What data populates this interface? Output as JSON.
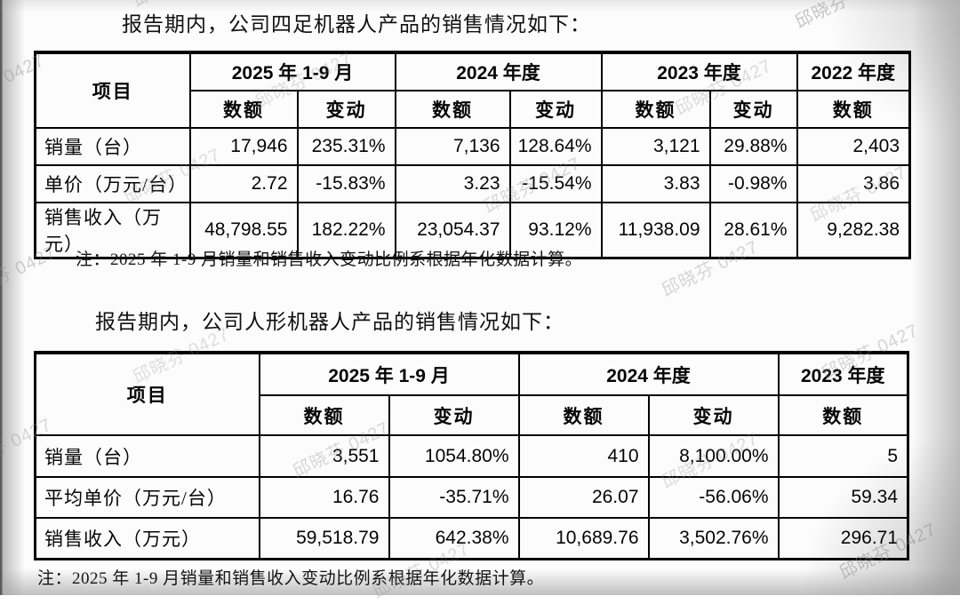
{
  "page": {
    "watermark_text": "邱晓芬 0427"
  },
  "section1": {
    "title": "报告期内，公司四足机器人产品的销售情况如下：",
    "note": "注：2025 年 1-9 月销量和销售收入变动比例系根据年化数据计算。",
    "table": {
      "item_header": "项目",
      "subheaders": {
        "amount": "数额",
        "change": "变动"
      },
      "col_groups": [
        {
          "label": "2025 年 1-9 月",
          "cols": [
            "数额",
            "变动"
          ]
        },
        {
          "label": "2024 年度",
          "cols": [
            "数额",
            "变动"
          ]
        },
        {
          "label": "2023 年度",
          "cols": [
            "数额",
            "变动"
          ]
        },
        {
          "label": "2022 年度",
          "cols": [
            "数额"
          ]
        }
      ],
      "rows": [
        {
          "label": "销量（台）",
          "values": [
            "17,946",
            "235.31%",
            "7,136",
            "128.64%",
            "3,121",
            "29.88%",
            "2,403"
          ]
        },
        {
          "label": "单价（万元/台）",
          "values": [
            "2.72",
            "-15.83%",
            "3.23",
            "-15.54%",
            "3.83",
            "-0.98%",
            "3.86"
          ]
        },
        {
          "label": "销售收入（万元）",
          "values": [
            "48,798.55",
            "182.22%",
            "23,054.37",
            "93.12%",
            "11,938.09",
            "28.61%",
            "9,282.38"
          ]
        }
      ]
    }
  },
  "section2": {
    "title": "报告期内，公司人形机器人产品的销售情况如下：",
    "note": "注：2025 年 1-9 月销量和销售收入变动比例系根据年化数据计算。",
    "table": {
      "item_header": "项目",
      "col_groups": [
        {
          "label": "2025 年 1-9 月",
          "cols": [
            "数额",
            "变动"
          ]
        },
        {
          "label": "2024 年度",
          "cols": [
            "数额",
            "变动"
          ]
        },
        {
          "label": "2023 年度",
          "cols": [
            "数额"
          ]
        }
      ],
      "rows": [
        {
          "label": "销量（台）",
          "values": [
            "3,551",
            "1054.80%",
            "410",
            "8,100.00%",
            "5"
          ]
        },
        {
          "label": "平均单价（万元/台）",
          "values": [
            "16.76",
            "-35.71%",
            "26.07",
            "-56.06%",
            "59.34"
          ]
        },
        {
          "label": "销售收入（万元）",
          "values": [
            "59,518.79",
            "642.38%",
            "10,689.76",
            "3,502.76%",
            "296.71"
          ]
        }
      ]
    }
  },
  "chart_data": [
    {
      "type": "table",
      "title": "四足机器人产品销售情况",
      "columns": [
        "项目",
        "2025年1-9月 数额",
        "2025年1-9月 变动",
        "2024年度 数额",
        "2024年度 变动",
        "2023年度 数额",
        "2023年度 变动",
        "2022年度 数额"
      ],
      "rows": [
        [
          "销量（台）",
          17946,
          "235.31%",
          7136,
          "128.64%",
          3121,
          "29.88%",
          2403
        ],
        [
          "单价（万元/台）",
          2.72,
          "-15.83%",
          3.23,
          "-15.54%",
          3.83,
          "-0.98%",
          3.86
        ],
        [
          "销售收入（万元）",
          48798.55,
          "182.22%",
          23054.37,
          "93.12%",
          11938.09,
          "28.61%",
          9282.38
        ]
      ]
    },
    {
      "type": "table",
      "title": "人形机器人产品销售情况",
      "columns": [
        "项目",
        "2025年1-9月 数额",
        "2025年1-9月 变动",
        "2024年度 数额",
        "2024年度 变动",
        "2023年度 数额"
      ],
      "rows": [
        [
          "销量（台）",
          3551,
          "1054.80%",
          410,
          "8,100.00%",
          5
        ],
        [
          "平均单价（万元/台）",
          16.76,
          "-35.71%",
          26.07,
          "-56.06%",
          59.34
        ],
        [
          "销售收入（万元）",
          59518.79,
          "642.38%",
          10689.76,
          "3,502.76%",
          296.71
        ]
      ]
    }
  ]
}
